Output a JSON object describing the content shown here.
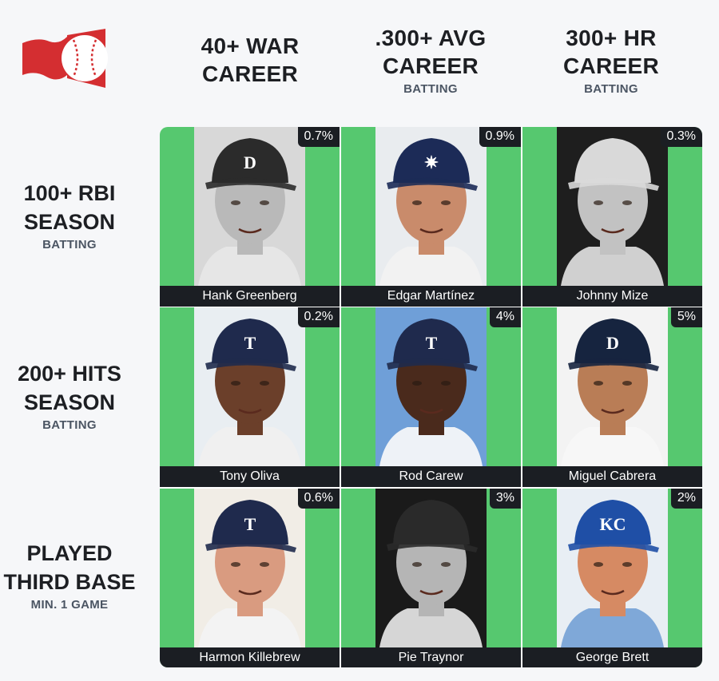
{
  "columns": [
    {
      "title": "40+ WAR\nCAREER",
      "subtitle": ""
    },
    {
      "title": ".300+ AVG\nCAREER",
      "subtitle": "BATTING"
    },
    {
      "title": "300+ HR\nCAREER",
      "subtitle": "BATTING"
    }
  ],
  "rows": [
    {
      "title": "100+ RBI\nSEASON",
      "subtitle": "BATTING"
    },
    {
      "title": "200+ HITS\nSEASON",
      "subtitle": "BATTING"
    },
    {
      "title": "PLAYED\nTHIRD BASE",
      "subtitle": "MIN. 1 GAME"
    }
  ],
  "cells": [
    [
      {
        "name": "Hank Greenberg",
        "pct": "0.7%",
        "cap": "#2b2b2b",
        "skin": "#b9b9b9",
        "bg": "#d8d8d8",
        "shirt": "#e6e6e6",
        "logo": "D"
      },
      {
        "name": "Edgar Martínez",
        "pct": "0.9%",
        "cap": "#1c2b57",
        "skin": "#c98b6b",
        "bg": "#e9ecef",
        "shirt": "#f2f2f2",
        "logo": "✷"
      },
      {
        "name": "Johnny Mize",
        "pct": "0.3%",
        "cap": "#d9d9d9",
        "skin": "#c2c2c2",
        "bg": "#1e1e1e",
        "shirt": "#d0d0d0",
        "logo": ""
      }
    ],
    [
      {
        "name": "Tony Oliva",
        "pct": "0.2%",
        "cap": "#1f2a4d",
        "skin": "#6b3f2a",
        "bg": "#e9eef2",
        "shirt": "#f0f0f0",
        "logo": "T"
      },
      {
        "name": "Rod Carew",
        "pct": "4%",
        "cap": "#1f2a4d",
        "skin": "#4a2a1c",
        "bg": "#6f9fd8",
        "shirt": "#eef2f7",
        "logo": "T"
      },
      {
        "name": "Miguel Cabrera",
        "pct": "5%",
        "cap": "#16243f",
        "skin": "#b97d56",
        "bg": "#f3f3f3",
        "shirt": "#f7f7f7",
        "logo": "D"
      }
    ],
    [
      {
        "name": "Harmon Killebrew",
        "pct": "0.6%",
        "cap": "#1f2a4d",
        "skin": "#d99b80",
        "bg": "#f1ede6",
        "shirt": "#f3f3f3",
        "logo": "T"
      },
      {
        "name": "Pie Traynor",
        "pct": "3%",
        "cap": "#2a2a2a",
        "skin": "#b5b5b5",
        "bg": "#1a1a1a",
        "shirt": "#d6d6d6",
        "logo": ""
      },
      {
        "name": "George Brett",
        "pct": "2%",
        "cap": "#1f4fa6",
        "skin": "#d68a63",
        "bg": "#e8eef4",
        "shirt": "#7fa8d8",
        "logo": "KC"
      }
    ]
  ],
  "colors": {
    "accent": "#56c86f",
    "label_bg": "#1b1e23",
    "logo_red": "#d42e31"
  },
  "icons": {
    "logo": "baseball-flag-logo"
  }
}
